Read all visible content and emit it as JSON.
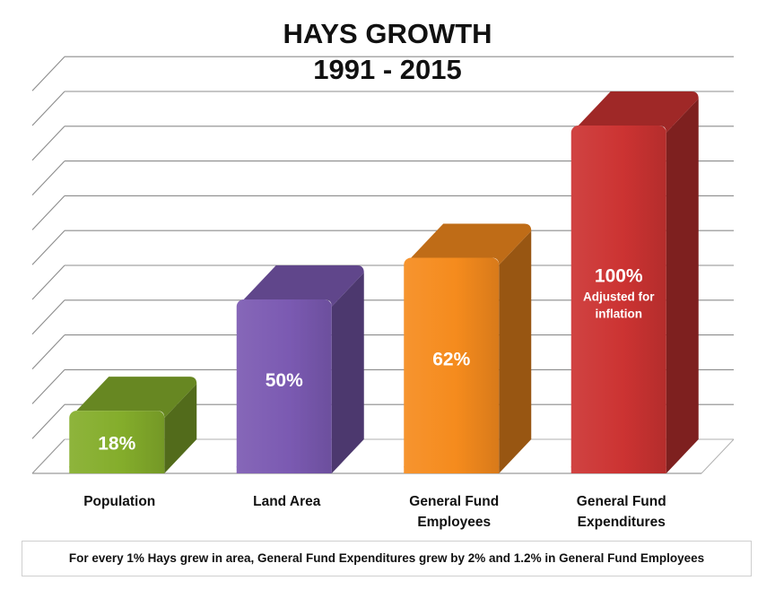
{
  "header": {
    "title_line1": "HAYS GROWTH",
    "title_line2": "1991 - 2015"
  },
  "chart_data": {
    "type": "bar",
    "title": "HAYS GROWTH 1991 - 2015",
    "categories": [
      "Population",
      "Land Area",
      "General Fund Employees",
      "General Fund Expenditures"
    ],
    "category_lines": [
      [
        "Population"
      ],
      [
        "Land Area"
      ],
      [
        "General Fund",
        "Employees"
      ],
      [
        "General Fund",
        "Expenditures"
      ]
    ],
    "values": [
      18,
      50,
      62,
      100
    ],
    "data_labels": [
      "18%",
      "50%",
      "62%",
      "100%"
    ],
    "sub_labels": [
      "",
      "",
      "",
      "Adjusted for inflation"
    ],
    "sub_label_lines": [
      [],
      [],
      [],
      [
        "Adjusted for",
        "inflation"
      ]
    ],
    "colors": [
      "#84ad2b",
      "#7b5ab2",
      "#f58b1d",
      "#cc3332"
    ],
    "ylim": [
      0,
      110
    ],
    "grid": true,
    "style": "3d"
  },
  "footnote": "For every 1% Hays grew in area, General Fund Expenditures grew by 2% and 1.2% in General Fund Employees"
}
